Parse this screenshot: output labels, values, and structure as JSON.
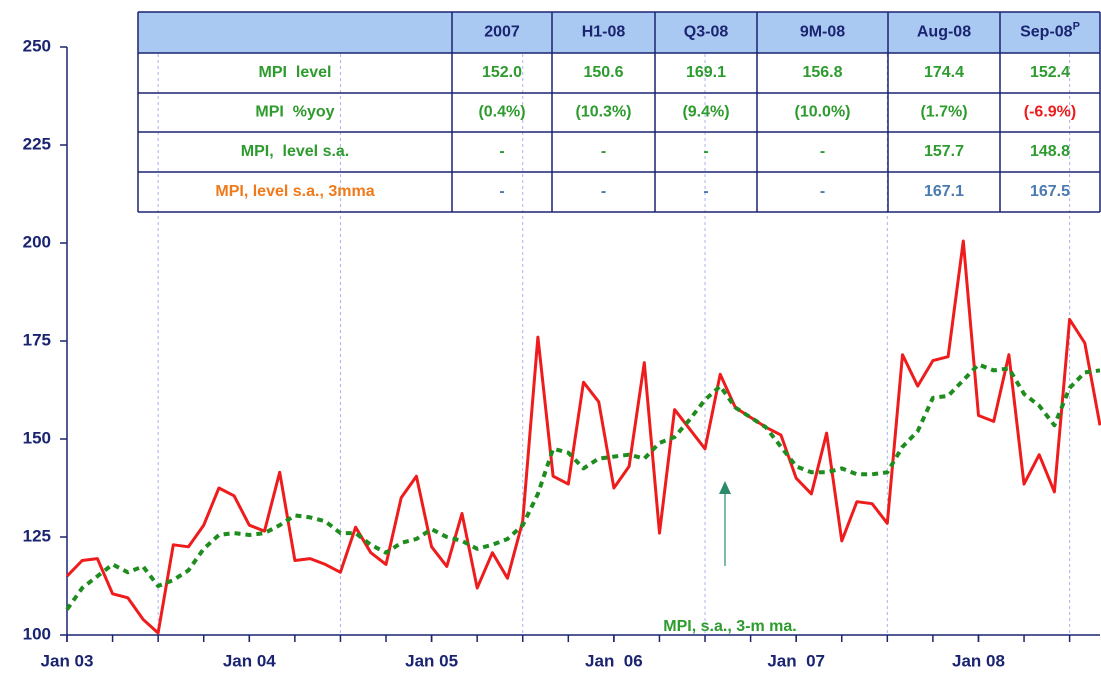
{
  "chart_data": {
    "type": "line",
    "annotation": "MPI, s.a., 3-m ma.",
    "xlim": [
      0,
      68
    ],
    "xticks": [
      {
        "value": 0,
        "label": "Jan 03"
      },
      {
        "value": 12,
        "label": "Jan 04"
      },
      {
        "value": 24,
        "label": "Jan 05"
      },
      {
        "value": 36,
        "label": "Jan  06"
      },
      {
        "value": 48,
        "label": "Jan  07"
      },
      {
        "value": 60,
        "label": "Jan 08"
      }
    ],
    "xminor": [
      0,
      3,
      6,
      9,
      12,
      15,
      18,
      21,
      24,
      27,
      30,
      33,
      36,
      39,
      42,
      45,
      48,
      51,
      54,
      57,
      60,
      63,
      66
    ],
    "xgrid": [
      6,
      18,
      30,
      42,
      54,
      66
    ],
    "ylim": [
      100,
      250
    ],
    "yticks": [
      100,
      125,
      150,
      175,
      200,
      225,
      250
    ],
    "x": [
      0,
      1,
      2,
      3,
      4,
      5,
      6,
      7,
      8,
      9,
      10,
      11,
      12,
      13,
      14,
      15,
      16,
      17,
      18,
      19,
      20,
      21,
      22,
      23,
      24,
      25,
      26,
      27,
      28,
      29,
      30,
      31,
      32,
      33,
      34,
      35,
      36,
      37,
      38,
      39,
      40,
      41,
      42,
      43,
      44,
      45,
      46,
      47,
      48,
      49,
      50,
      51,
      52,
      53,
      54,
      55,
      56,
      57,
      58,
      59,
      60,
      61,
      62,
      63,
      64,
      65,
      66,
      67,
      68
    ],
    "series": [
      {
        "color": "#ee1c1c",
        "style": "solid",
        "values": [
          115,
          119,
          119.5,
          110.5,
          109.5,
          104,
          100.5,
          123,
          122.5,
          128,
          137.5,
          135.5,
          128,
          126.5,
          141.5,
          119,
          119.5,
          118,
          116,
          127.5,
          121,
          118,
          135,
          140.5,
          122.5,
          117.5,
          131,
          112,
          121,
          114.5,
          129,
          176,
          140.5,
          138.5,
          164.5,
          159.5,
          137.5,
          143,
          169.5,
          126,
          157.5,
          152.5,
          147.5,
          166.5,
          158,
          155.5,
          153,
          151,
          140,
          136,
          151.5,
          124,
          134,
          133.5,
          128.5,
          171.5,
          163.5,
          170,
          171,
          200.5,
          156,
          154.5,
          171.5,
          138.5,
          146,
          136.5,
          180.5,
          174.5,
          153.5
        ]
      },
      {
        "color": "#1e8c1e",
        "style": "dashed",
        "values": [
          106.5,
          112,
          115,
          118,
          116,
          117.5,
          112.5,
          114,
          116.5,
          122,
          125.5,
          126,
          125.5,
          126,
          128,
          130.5,
          130,
          129,
          126,
          126,
          123,
          121,
          123.5,
          124.5,
          127,
          125,
          124,
          122,
          123,
          124.5,
          128,
          136,
          147.5,
          146.5,
          142.5,
          145,
          145.5,
          146,
          145,
          149,
          150.5,
          155,
          160,
          163.5,
          158,
          155.5,
          153,
          148,
          143,
          141.5,
          141.5,
          142.5,
          141,
          141,
          141.5,
          148,
          152,
          160.5,
          161,
          165,
          169,
          167.5,
          168,
          161.5,
          158.5,
          153.5,
          163,
          167,
          167.5
        ]
      }
    ]
  },
  "table": {
    "columns": [
      "2007",
      "H1-08",
      "Q3-08",
      "9M-08",
      "Aug-08",
      "Sep-08"
    ],
    "last_column_superscript": "P",
    "rows": [
      {
        "label": "MPI  level",
        "cells": [
          "152.0",
          "150.6",
          "169.1",
          "156.8",
          "174.4",
          "152.4"
        ]
      },
      {
        "label": "MPI  %yoy",
        "cells": [
          "(0.4%)",
          "(10.3%)",
          "(9.4%)",
          "(10.0%)",
          "(1.7%)",
          "(-6.9%)"
        ]
      },
      {
        "label": "MPI,  level s.a.",
        "cells": [
          "-",
          "-",
          "-",
          "-",
          "157.7",
          "148.8"
        ]
      },
      {
        "label": "MPI, level s.a., 3mma",
        "cells": [
          "-",
          "-",
          "-",
          "-",
          "167.1",
          "167.5"
        ]
      }
    ]
  }
}
